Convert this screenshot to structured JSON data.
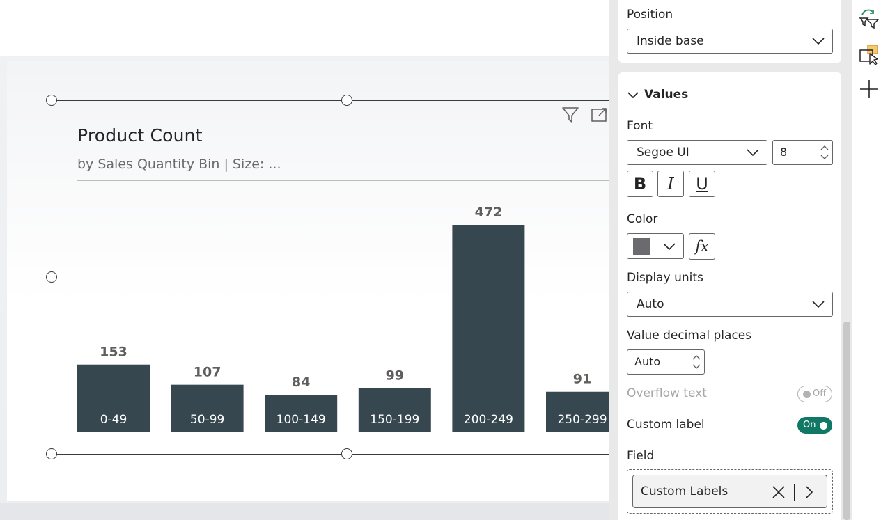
{
  "visual": {
    "title": "Product Count",
    "subtitle": "by Sales Quantity Bin | Size: ..."
  },
  "chart_data": {
    "type": "bar",
    "categories": [
      "0-49",
      "50-99",
      "100-149",
      "150-199",
      "200-249",
      "250-299"
    ],
    "values": [
      153,
      107,
      84,
      99,
      472,
      91
    ],
    "title": "Product Count",
    "subtitle": "by Sales Quantity Bin | Size: ...",
    "label_position": "inside-base",
    "bar_color": "#37474f",
    "data_label_color": "#605e5c",
    "grid": false
  },
  "format_pane": {
    "position": {
      "label": "Position",
      "value": "Inside base"
    },
    "values_section": {
      "title": "Values"
    },
    "font": {
      "label": "Font",
      "family": "Segoe UI",
      "size": "8",
      "bold": "B",
      "italic": "I",
      "underline": "U"
    },
    "color": {
      "label": "Color",
      "swatch": "#6b6b6f",
      "fx": "fx"
    },
    "display_units": {
      "label": "Display units",
      "value": "Auto"
    },
    "decimal_places": {
      "label": "Value decimal places",
      "value": "Auto"
    },
    "overflow_text": {
      "label": "Overflow text",
      "state": "Off"
    },
    "custom_label": {
      "label": "Custom label",
      "state": "On",
      "accent": "#117865"
    },
    "field": {
      "label": "Field",
      "value": "Custom Labels"
    }
  }
}
